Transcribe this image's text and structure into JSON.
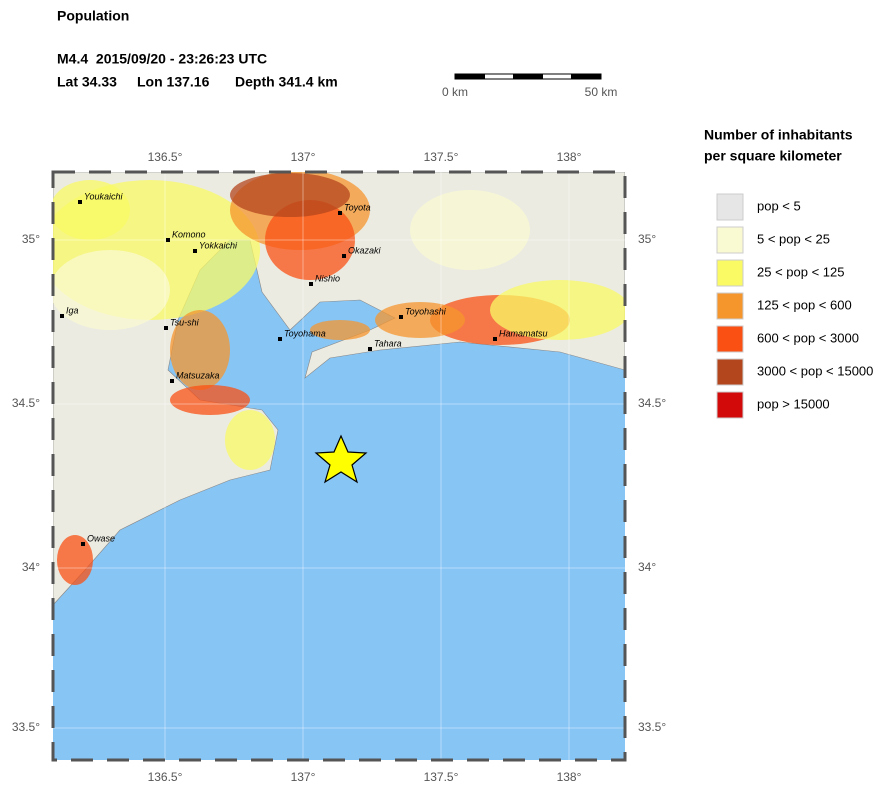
{
  "header": {
    "title": "Population",
    "event": "M4.4  2015/09/20 - 23:26:23 UTC",
    "lat": "Lat 34.33",
    "lon": "Lon 137.16",
    "depth": "Depth 341.4 km"
  },
  "scale_bar": {
    "start": "0 km",
    "end": "50 km"
  },
  "map": {
    "lon_labels": [
      "136.5°",
      "137°",
      "137.5°",
      "138°"
    ],
    "lat_labels": [
      "35°",
      "34.5°",
      "34°",
      "33.5°"
    ],
    "cities": [
      "Youkaichi",
      "Komono",
      "Yokkaichi",
      "Iga",
      "Tsu-shi",
      "Matsuzaka",
      "Owase",
      "Toyota",
      "Okazaki",
      "Nishio",
      "Toyohama",
      "Tahara",
      "Toyohashi",
      "Hamamatsu"
    ]
  },
  "legend": {
    "title": [
      "Number of inhabitants",
      "per square kilometer"
    ],
    "items": [
      {
        "label": "pop < 5",
        "color": "#e6e6e6"
      },
      {
        "label": "5 < pop < 25",
        "color": "#fafad2"
      },
      {
        "label": "25 < pop < 125",
        "color": "#fafa64"
      },
      {
        "label": "125 < pop < 600",
        "color": "#f5962d"
      },
      {
        "label": "600 < pop < 3000",
        "color": "#fa5014"
      },
      {
        "label": "3000 < pop < 15000",
        "color": "#b4461e"
      },
      {
        "label": "pop > 15000",
        "color": "#d20a0a"
      }
    ]
  }
}
